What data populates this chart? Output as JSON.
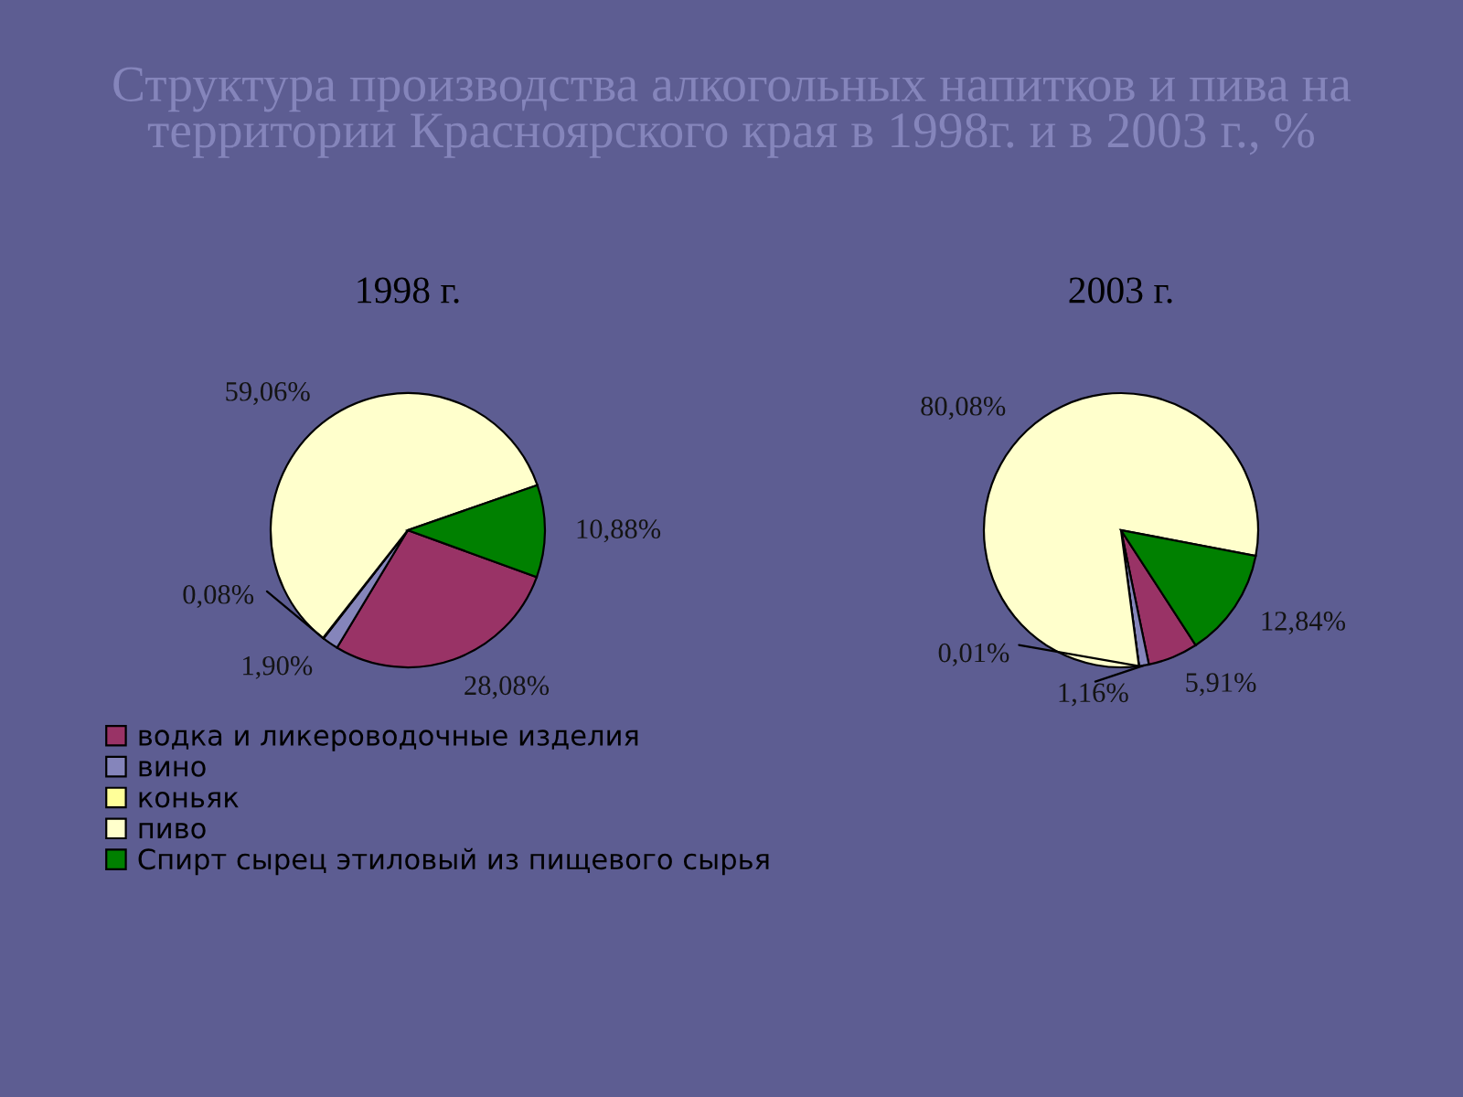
{
  "chart_data": [
    {
      "type": "pie",
      "title": "Структура производства алкогольных напитков и пива на территории Красноярского края в 1998г. и в 2003 г., %",
      "subtitle": "1998 г.",
      "categories": [
        "водка и ликероводочные изделия",
        "вино",
        "коньяк",
        "пиво",
        "Спирт сырец этиловый из пищевого сырья"
      ],
      "values": [
        28.08,
        1.9,
        0.08,
        59.06,
        10.88
      ],
      "value_labels": [
        "28,08%",
        "1,90%",
        "0,08%",
        "59,06%",
        "10,88%"
      ],
      "colors": [
        "#993366",
        "#8585bb",
        "#ffff99",
        "#ffffcc",
        "#008000"
      ],
      "legend": "bottom"
    },
    {
      "type": "pie",
      "subtitle": "2003 г.",
      "categories": [
        null,
        null,
        null,
        null,
        null
      ],
      "values": [
        5.91,
        1.16,
        0.01,
        80.08,
        12.84
      ],
      "value_labels": [
        "5,91%",
        "1,16%",
        "0,01%",
        "80,08%",
        "12,84%"
      ],
      "colors": [
        "#993366",
        "#8585bb",
        "#ffff99",
        "#ffffcc",
        "#008000"
      ]
    }
  ]
}
